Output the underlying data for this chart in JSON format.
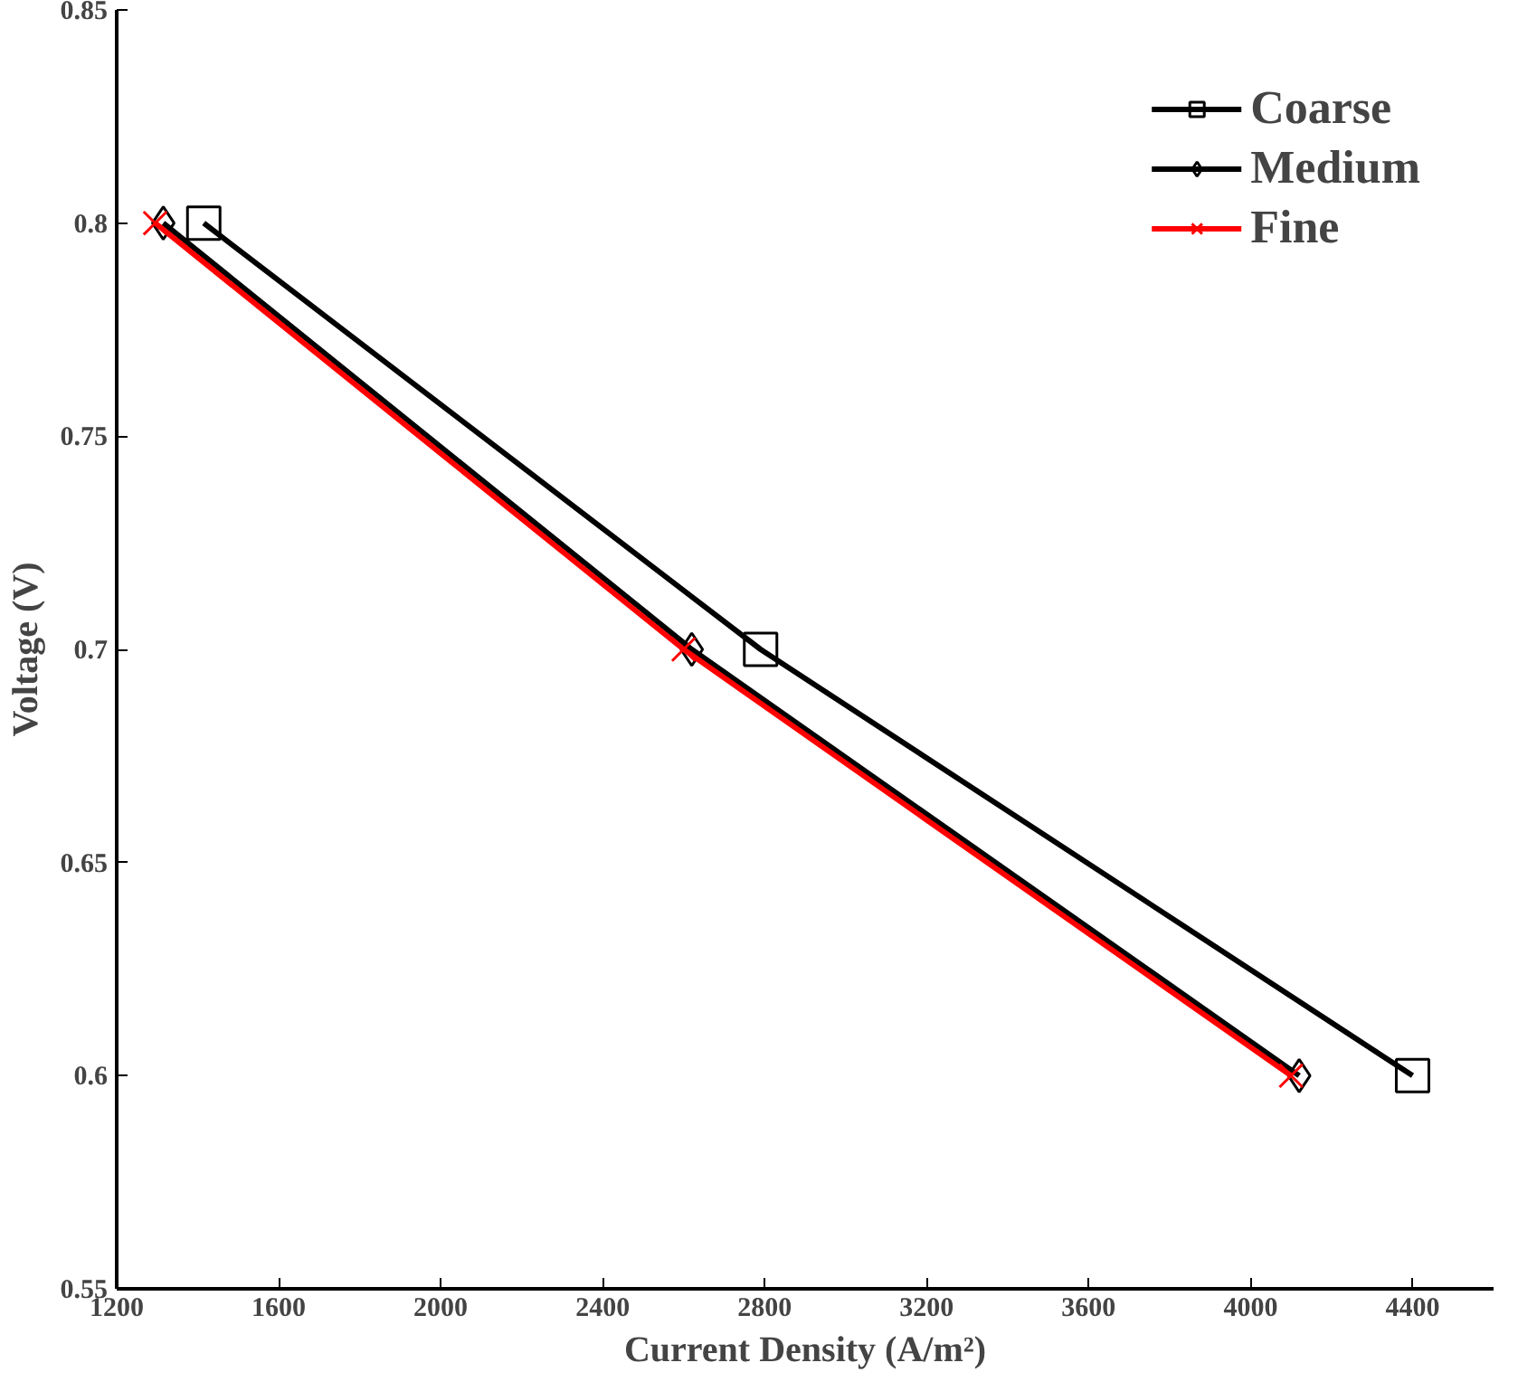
{
  "chart_data": {
    "type": "line",
    "xlabel": "Current Density (A/m²)",
    "ylabel": "Voltage (V)",
    "xlim": [
      1200,
      4600
    ],
    "xticks": [
      1200,
      1600,
      2000,
      2400,
      2800,
      3200,
      3600,
      4000,
      4400
    ],
    "ylim": [
      0.55,
      0.85
    ],
    "yticks": [
      0.55,
      0.6,
      0.65,
      0.7,
      0.75,
      0.8,
      0.85
    ],
    "grid": false,
    "legend": "top right",
    "series": [
      {
        "name": "Coarse",
        "color": "#000000",
        "marker": "square",
        "x": [
          1415,
          2790,
          4400
        ],
        "values": [
          0.8,
          0.7,
          0.6
        ]
      },
      {
        "name": "Medium",
        "color": "#000000",
        "marker": "diamond",
        "x": [
          1315,
          2620,
          4120
        ],
        "values": [
          0.8,
          0.7,
          0.6
        ]
      },
      {
        "name": "Fine",
        "color": "#ff0000",
        "marker": "cross",
        "x": [
          1295,
          2600,
          4100
        ],
        "values": [
          0.8,
          0.7,
          0.6
        ]
      }
    ]
  }
}
